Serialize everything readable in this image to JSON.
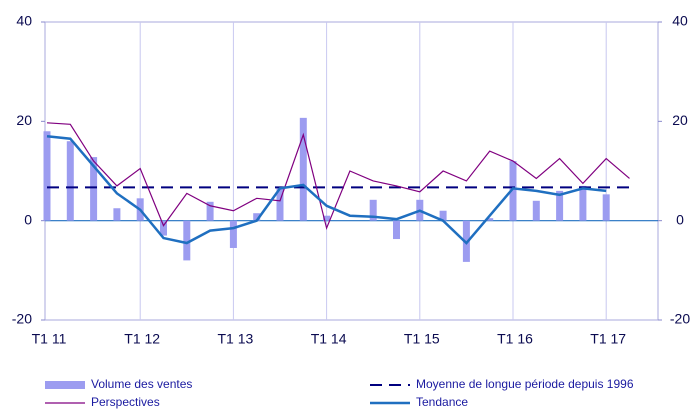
{
  "chart_data": {
    "type": "bar-line",
    "categories": [
      "T1 11",
      null,
      null,
      null,
      "T1 12",
      null,
      null,
      null,
      "T1 13",
      null,
      null,
      null,
      "T1 14",
      null,
      null,
      null,
      "T1 15",
      null,
      null,
      null,
      "T1 16",
      null,
      null,
      null,
      "T1 17",
      null
    ],
    "series": [
      {
        "name": "Volume des ventes",
        "kind": "bar",
        "color": "#9c9cf0",
        "values": [
          18,
          16,
          12.8,
          2.5,
          4.5,
          -3,
          -8,
          3.8,
          -5.5,
          1.5,
          6.5,
          20.7,
          1,
          0,
          4.2,
          -3.7,
          4.2,
          2,
          -8.3,
          0.5,
          12,
          4,
          6,
          7,
          5.3,
          null
        ]
      },
      {
        "name": "Moyenne de longue période depuis 1996",
        "kind": "dashed",
        "color": "#00007f",
        "values": [
          6.7,
          6.7,
          6.7,
          6.7,
          6.7,
          6.7,
          6.7,
          6.7,
          6.7,
          6.7,
          6.7,
          6.7,
          6.7,
          6.7,
          6.7,
          6.7,
          6.7,
          6.7,
          6.7,
          6.7,
          6.7,
          6.7,
          6.7,
          6.7,
          6.7,
          6.7
        ]
      },
      {
        "name": "Perspectives",
        "kind": "thin",
        "color": "#800080",
        "values": [
          19.7,
          19.4,
          12,
          7,
          10.5,
          -1,
          5.5,
          3,
          2,
          4.5,
          4,
          17.3,
          -1.5,
          10,
          8,
          7,
          5.8,
          10,
          8,
          14,
          12,
          8.5,
          12.5,
          7.5,
          12.5,
          8.5
        ]
      },
      {
        "name": "Tendance",
        "kind": "thick",
        "color": "#1f6fc0",
        "values": [
          17,
          16.5,
          11,
          5.5,
          2.2,
          -3.5,
          -4.5,
          -2,
          -1.5,
          0,
          6.5,
          7.2,
          3,
          1,
          0.8,
          0.3,
          2,
          0,
          -4.5,
          1,
          6.5,
          6,
          5.2,
          6.5,
          6,
          null
        ]
      }
    ],
    "ylim": [
      -20,
      40
    ],
    "yticks": [
      -20,
      0,
      20,
      40
    ],
    "y2lim": [
      -20,
      40
    ],
    "y2ticks": [
      -20,
      0,
      20,
      40
    ]
  }
}
